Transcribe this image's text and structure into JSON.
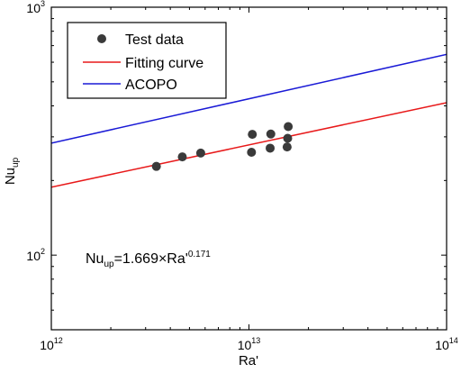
{
  "chart_data": {
    "type": "scatter",
    "xlabel": "Ra'",
    "ylabel": "Nu",
    "ylabel_sub": "up",
    "xscale": "log",
    "yscale": "log",
    "xlim": [
      1000000000000.0,
      100000000000000.0
    ],
    "ylim": [
      50,
      1000
    ],
    "x_ticks": [
      {
        "base": "10",
        "exp": "12"
      },
      {
        "base": "10",
        "exp": "13"
      },
      {
        "base": "10",
        "exp": "14"
      }
    ],
    "y_ticks": [
      {
        "base": "10",
        "exp": "2"
      },
      {
        "base": "10",
        "exp": "3"
      }
    ],
    "legend_position": "top-left",
    "legend": [
      {
        "label": "Test data",
        "kind": "marker",
        "color": "#3a3a3a"
      },
      {
        "label": "Fitting curve",
        "kind": "line",
        "color": "#e8191a"
      },
      {
        "label": "ACOPO",
        "kind": "line",
        "color": "#1a1ad6"
      }
    ],
    "annotation": {
      "prefix": "Nu",
      "prefix_sub": "up",
      "middle": "=1.669×Ra'",
      "exponent": "0.171"
    },
    "series": [
      {
        "name": "Test data",
        "kind": "scatter",
        "color": "#3a3a3a",
        "points": [
          {
            "x": 3400000000000.0,
            "y": 228
          },
          {
            "x": 4600000000000.0,
            "y": 249
          },
          {
            "x": 5700000000000.0,
            "y": 258
          },
          {
            "x": 10300000000000.0,
            "y": 260
          },
          {
            "x": 10400000000000.0,
            "y": 307
          },
          {
            "x": 12800000000000.0,
            "y": 270
          },
          {
            "x": 12900000000000.0,
            "y": 308
          },
          {
            "x": 15600000000000.0,
            "y": 273
          },
          {
            "x": 15700000000000.0,
            "y": 296
          },
          {
            "x": 15800000000000.0,
            "y": 330
          }
        ]
      },
      {
        "name": "Fitting curve",
        "kind": "line",
        "color": "#e8191a",
        "points": [
          {
            "x": 1000000000000.0,
            "y": 188
          },
          {
            "x": 100000000000000.0,
            "y": 412
          }
        ]
      },
      {
        "name": "ACOPO",
        "kind": "line",
        "color": "#1a1ad6",
        "points": [
          {
            "x": 1000000000000.0,
            "y": 283
          },
          {
            "x": 100000000000000.0,
            "y": 645
          }
        ]
      }
    ]
  }
}
